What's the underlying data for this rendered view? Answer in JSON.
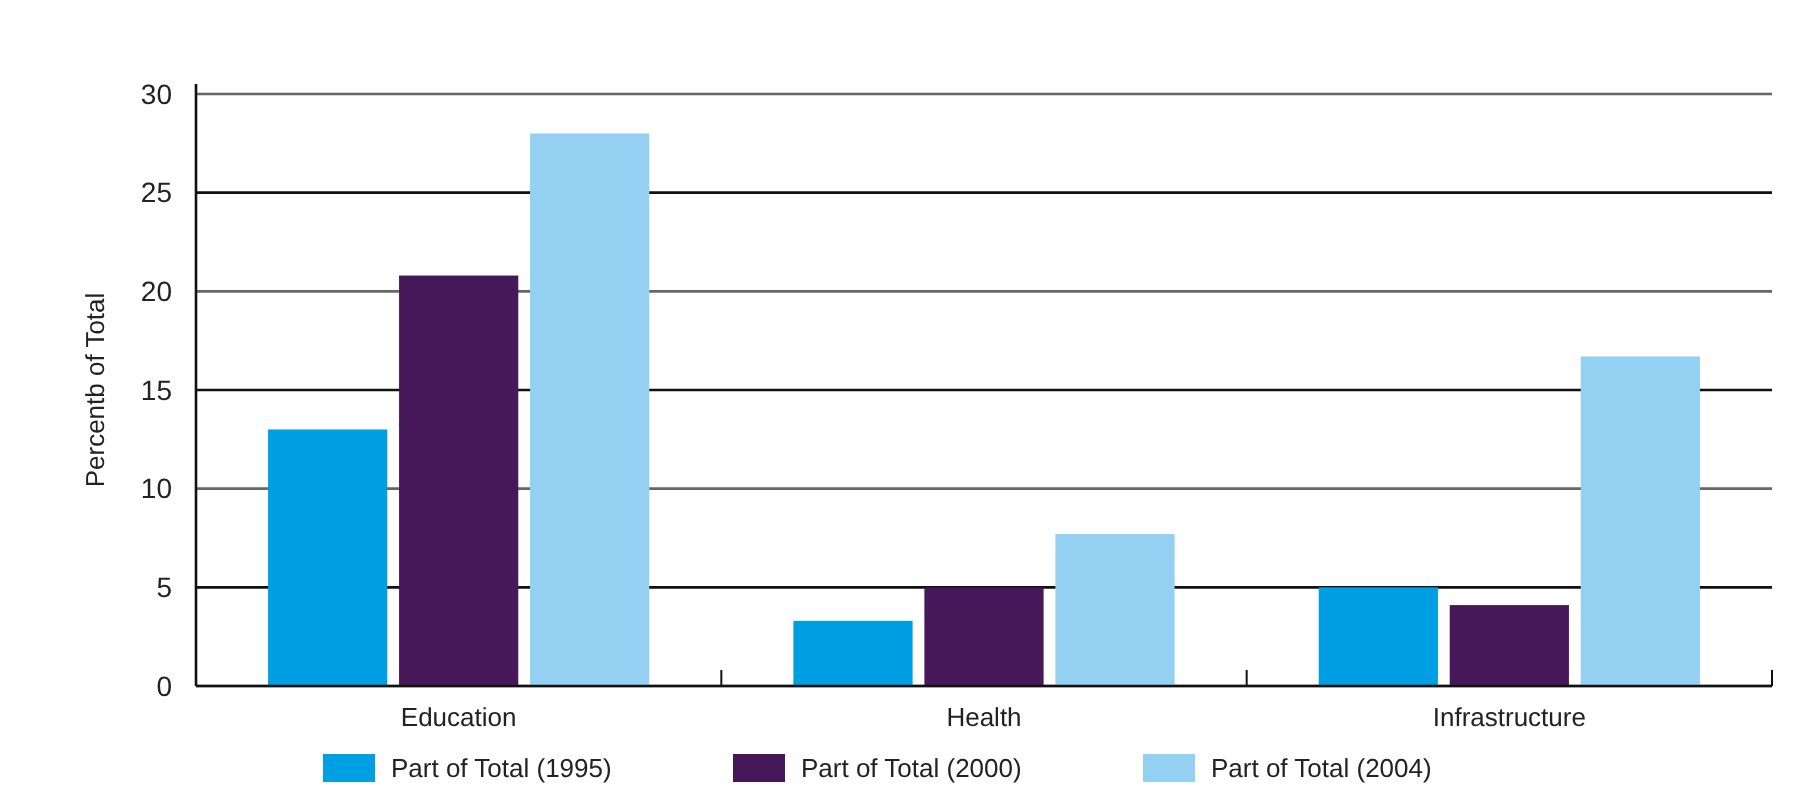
{
  "chart_data": {
    "type": "bar",
    "ylabel": "Percentb of Total",
    "categories": [
      "Education",
      "Health",
      "Infrastructure"
    ],
    "series": [
      {
        "name": "Part of Total (1995)",
        "color": "#009fe3",
        "values": [
          13.0,
          3.3,
          5.0
        ]
      },
      {
        "name": "Part of Total (2000)",
        "color": "#46185a",
        "values": [
          20.8,
          5.0,
          4.1
        ]
      },
      {
        "name": "Part of Total (2004)",
        "color": "#93d0f2",
        "values": [
          28.0,
          7.7,
          16.7
        ]
      }
    ],
    "ylim": [
      0,
      30
    ],
    "yticks": [
      0,
      5,
      10,
      15,
      20,
      25,
      30
    ],
    "grid": "y",
    "legend": "bottom"
  }
}
